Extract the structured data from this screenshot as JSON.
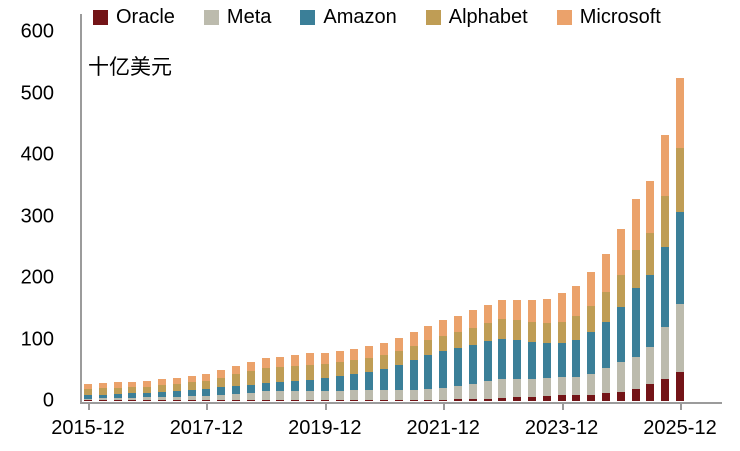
{
  "chart_data": {
    "type": "bar",
    "stacked": true,
    "title": "",
    "unit_label": "十亿美元",
    "ylabel": "",
    "xlabel": "",
    "ylim": [
      0,
      600
    ],
    "y_ticks": [
      0,
      100,
      200,
      300,
      400,
      500,
      600
    ],
    "x_tick_labels": [
      "2015-12",
      "2017-12",
      "2019-12",
      "2021-12",
      "2023-12",
      "2025-12"
    ],
    "legend_position": "top",
    "grid": false,
    "categories": [
      "2015-12",
      "2016-03",
      "2016-06",
      "2016-09",
      "2016-12",
      "2017-03",
      "2017-06",
      "2017-09",
      "2017-12",
      "2018-03",
      "2018-06",
      "2018-09",
      "2018-12",
      "2019-03",
      "2019-06",
      "2019-09",
      "2019-12",
      "2020-03",
      "2020-06",
      "2020-09",
      "2020-12",
      "2021-03",
      "2021-06",
      "2021-09",
      "2021-12",
      "2022-03",
      "2022-06",
      "2022-09",
      "2022-12",
      "2023-03",
      "2023-06",
      "2023-09",
      "2023-12",
      "2024-03",
      "2024-06",
      "2024-09",
      "2024-12",
      "2025-03",
      "2025-06",
      "2025-09",
      "2025-12"
    ],
    "series": [
      {
        "name": "Oracle",
        "color": "#731417",
        "values": [
          1.3,
          1.2,
          1.2,
          1.1,
          1.2,
          1.4,
          1.6,
          1.8,
          2.0,
          1.9,
          1.8,
          1.8,
          1.7,
          1.7,
          1.6,
          1.6,
          1.7,
          1.7,
          1.7,
          1.8,
          1.8,
          1.9,
          1.9,
          2.0,
          2.1,
          2.6,
          3.2,
          4.0,
          5.0,
          6.0,
          6.8,
          7.5,
          9.0,
          9.5,
          10.5,
          13.0,
          15.0,
          20.0,
          27.0,
          36.0,
          47.0
        ]
      },
      {
        "name": "Meta",
        "color": "#bcbbad",
        "values": [
          2.6,
          3.0,
          3.4,
          4.0,
          4.5,
          5.0,
          5.5,
          6.1,
          6.8,
          8.5,
          10.2,
          12.0,
          13.9,
          14.5,
          15.0,
          15.2,
          15.1,
          15.3,
          15.4,
          15.5,
          15.7,
          16.0,
          16.6,
          17.5,
          18.6,
          21.0,
          24.0,
          28.0,
          31.5,
          30.5,
          29.5,
          29.8,
          30.0,
          30.0,
          33.0,
          40.0,
          48.0,
          52.0,
          60.0,
          85.0,
          110.0
        ]
      },
      {
        "name": "Amazon",
        "color": "#3b7f98",
        "values": [
          6.0,
          6.3,
          6.7,
          7.1,
          7.5,
          8.2,
          9.0,
          10.0,
          11.0,
          11.6,
          12.2,
          12.9,
          13.5,
          14.5,
          16.0,
          18.0,
          20.0,
          23.0,
          26.5,
          30.5,
          35.0,
          41.0,
          48.0,
          55.0,
          61.0,
          62.5,
          64.0,
          65.0,
          65.0,
          63.0,
          60.0,
          57.0,
          55.0,
          60.0,
          68.0,
          76.0,
          90.0,
          112.0,
          118.0,
          130.0,
          150.0
        ]
      },
      {
        "name": "Alphabet",
        "color": "#bf9d55",
        "values": [
          10.0,
          10.0,
          10.1,
          10.1,
          10.2,
          10.8,
          11.5,
          12.3,
          13.2,
          16.0,
          19.0,
          22.0,
          25.1,
          25.0,
          24.5,
          24.0,
          23.5,
          23.2,
          22.9,
          22.6,
          22.3,
          22.8,
          23.4,
          24.0,
          24.6,
          26.3,
          28.0,
          29.8,
          31.5,
          32.0,
          32.5,
          33.0,
          34.0,
          38.0,
          43.0,
          48.0,
          52.0,
          62.0,
          68.0,
          82.0,
          104.0
        ]
      },
      {
        "name": "Microsoft",
        "color": "#eba26b",
        "values": [
          8.0,
          8.4,
          8.8,
          9.2,
          9.5,
          9.8,
          10.2,
          10.6,
          11.0,
          12.0,
          13.0,
          14.2,
          15.5,
          16.5,
          17.5,
          18.7,
          17.7,
          18.0,
          18.5,
          18.8,
          19.2,
          20.5,
          22.0,
          23.5,
          25.0,
          26.5,
          28.0,
          29.5,
          31.0,
          33.0,
          36.0,
          39.0,
          48.0,
          50.0,
          56.0,
          62.0,
          75.0,
          82.0,
          84.0,
          100.0,
          115.0
        ]
      }
    ]
  }
}
